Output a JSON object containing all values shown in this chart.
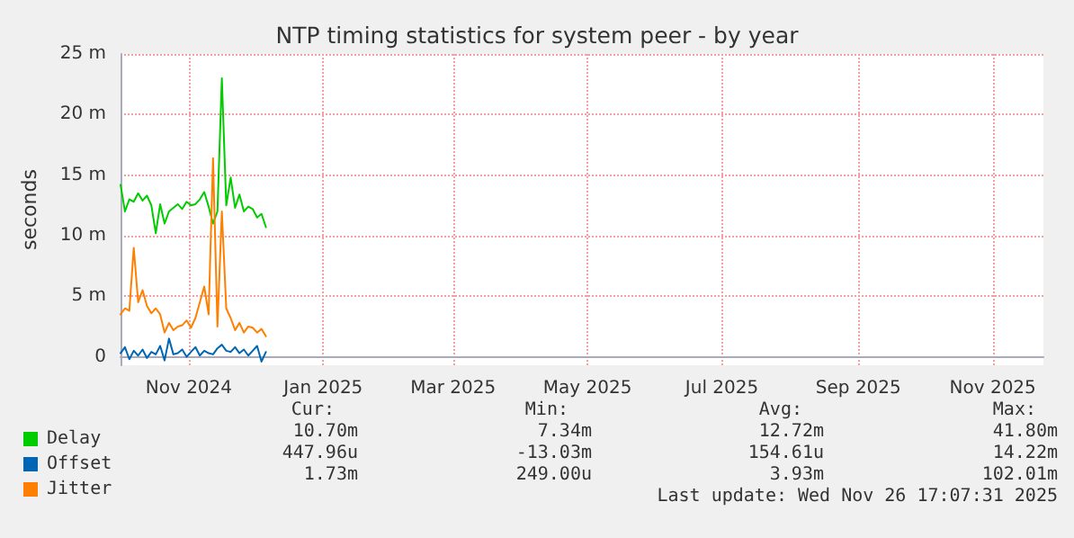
{
  "chart_data": {
    "type": "line",
    "title": "NTP timing statistics for system peer - by year",
    "ylabel": "seconds",
    "x": [
      "2024-10-01",
      "2024-10-03",
      "2024-10-05",
      "2024-10-07",
      "2024-10-09",
      "2024-10-11",
      "2024-10-13",
      "2024-10-15",
      "2024-10-17",
      "2024-10-19",
      "2024-10-21",
      "2024-10-23",
      "2024-10-25",
      "2024-10-27",
      "2024-10-29",
      "2024-10-31",
      "2024-11-02",
      "2024-11-04",
      "2024-11-06",
      "2024-11-08",
      "2024-11-10",
      "2024-11-12",
      "2024-11-14",
      "2024-11-16",
      "2024-11-18",
      "2024-11-20",
      "2024-11-22",
      "2024-11-24",
      "2024-11-26",
      "2024-11-28",
      "2024-11-30",
      "2024-12-02",
      "2024-12-04",
      "2024-12-06"
    ],
    "series": [
      {
        "name": "Delay",
        "color": "#00cc00",
        "values": [
          14.2,
          12.0,
          13.0,
          12.8,
          13.5,
          12.9,
          13.3,
          12.5,
          10.2,
          12.6,
          11.0,
          12.0,
          12.3,
          12.6,
          12.2,
          12.8,
          12.5,
          12.6,
          13.0,
          13.6,
          12.4,
          11.0,
          12.0,
          23.0,
          12.5,
          14.8,
          12.3,
          13.4,
          12.0,
          12.4,
          12.2,
          11.5,
          11.8,
          10.7
        ]
      },
      {
        "name": "Offset",
        "color": "#0066b3",
        "values": [
          0.3,
          0.8,
          -0.2,
          0.5,
          0.1,
          0.6,
          -0.1,
          0.4,
          0.2,
          0.9,
          -0.3,
          1.5,
          0.2,
          0.3,
          0.6,
          0.0,
          0.4,
          0.8,
          0.1,
          0.5,
          0.3,
          0.2,
          0.7,
          1.0,
          0.5,
          0.4,
          0.8,
          0.3,
          0.6,
          0.1,
          0.5,
          0.9,
          -0.4,
          0.4
        ]
      },
      {
        "name": "Jitter",
        "color": "#ff8000",
        "values": [
          3.5,
          4.0,
          3.8,
          9.0,
          4.5,
          5.5,
          4.2,
          3.6,
          4.0,
          3.5,
          2.0,
          2.8,
          2.2,
          2.5,
          2.6,
          3.0,
          2.4,
          3.2,
          4.5,
          5.8,
          3.5,
          16.4,
          2.5,
          12.0,
          4.0,
          3.2,
          2.2,
          2.8,
          2.0,
          2.5,
          2.4,
          2.0,
          2.3,
          1.7
        ]
      }
    ],
    "xlim": [
      "2024-10-01",
      "2025-11-24"
    ],
    "xticks": [
      {
        "value": "2024-11-01",
        "label": "Nov 2024"
      },
      {
        "value": "2025-01-01",
        "label": "Jan 2025"
      },
      {
        "value": "2025-03-01",
        "label": "Mar 2025"
      },
      {
        "value": "2025-05-01",
        "label": "May 2025"
      },
      {
        "value": "2025-07-01",
        "label": "Jul 2025"
      },
      {
        "value": "2025-09-01",
        "label": "Sep 2025"
      },
      {
        "value": "2025-11-01",
        "label": "Nov 2025"
      }
    ],
    "ylim": [
      -0.7,
      25
    ],
    "yticks": [
      0,
      {
        "value": 5,
        "label": "5 m"
      },
      {
        "value": 10,
        "label": "10 m"
      },
      {
        "value": 15,
        "label": "15 m"
      },
      {
        "value": 20,
        "label": "20 m"
      },
      {
        "value": 25,
        "label": "25 m"
      }
    ],
    "grid": true,
    "legend": "bottom left",
    "marker": "none",
    "line_style": "solid",
    "annotations": [
      "Cur:",
      "Min:",
      "Avg:",
      "Max:",
      "10.70m",
      "7.34m",
      "12.72m",
      "41.80m",
      "447.96u",
      "-13.03m",
      "154.61u",
      "14.22m",
      "1.73m",
      "249.00u",
      "3.93m",
      "102.01m",
      "Last update: Wed Nov 26 17:07:31 2025"
    ]
  }
}
